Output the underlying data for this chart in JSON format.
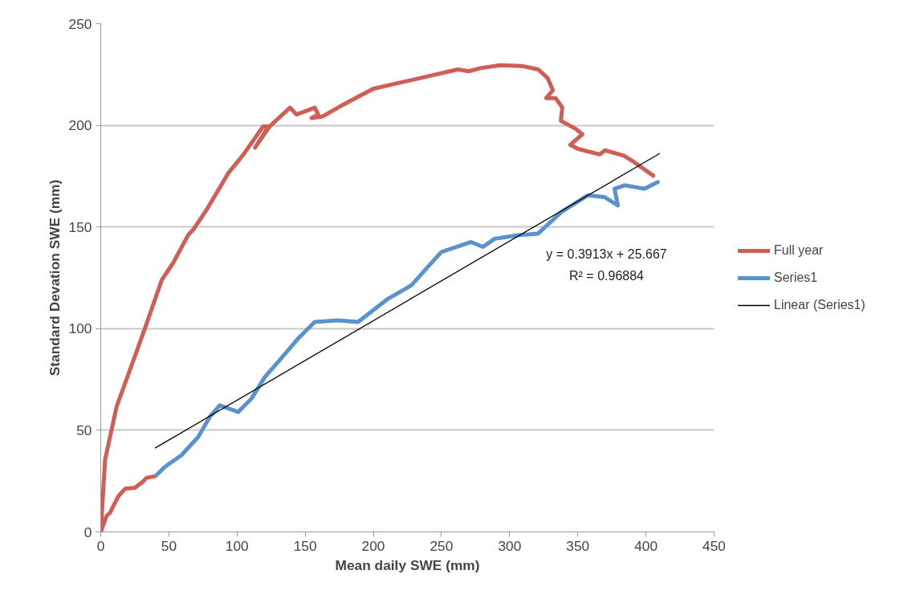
{
  "chart_data": {
    "type": "line",
    "xlabel": "Mean daily SWE (mm)",
    "ylabel": "Standard Devation SWE (mm)",
    "xlim": [
      0,
      450
    ],
    "xticks": [
      0,
      50,
      100,
      150,
      200,
      250,
      300,
      350,
      400,
      450
    ],
    "ylim": [
      0,
      250
    ],
    "yticks": [
      0,
      50,
      100,
      150,
      200,
      250
    ],
    "grid": "y",
    "legend": "right",
    "marker": "none",
    "line_style": "solid",
    "annotations": [
      "y = 0.3913x + 25.667\nR² = 0.96884"
    ],
    "series": [
      {
        "name": "Full year",
        "color": "#cf5e55",
        "x": [
          39.7,
          33.6,
          31.2,
          25.1,
          17.8,
          13,
          9.2,
          6.8,
          4.3,
          0.7,
          0,
          3.2,
          11.7,
          21.5,
          32.5,
          44.8,
          53.1,
          64.2,
          67.9,
          77.7,
          93.6,
          104.6,
          119,
          122.9,
          113.2,
          124,
          138.8,
          143.7,
          157,
          159.6,
          154.7,
          162.9,
          175.5,
          200,
          262,
          270,
          279.7,
          293.5,
          309,
          321,
          327.8,
          331.7,
          326.9,
          333.7,
          338.6,
          337.6,
          348.4,
          353.4,
          344.5,
          350.4,
          366.1,
          370,
          383.8,
          391.6,
          405.4
        ],
        "values": [
          27.4,
          26.6,
          24.9,
          21.7,
          21.2,
          17.6,
          12.7,
          9.4,
          7.9,
          1.2,
          0,
          35.6,
          61.8,
          79.8,
          100.3,
          124,
          132.3,
          146.1,
          148.7,
          158.5,
          176.5,
          185.6,
          199.4,
          199.4,
          189,
          199.5,
          208.7,
          205.3,
          208.7,
          205.3,
          203.6,
          204.4,
          209.3,
          218,
          227.5,
          226.6,
          228.3,
          229.6,
          229.2,
          227.5,
          223.3,
          217.3,
          213.4,
          213.4,
          208.8,
          202.2,
          198.3,
          195.6,
          190.4,
          188.4,
          185.7,
          187.7,
          185.1,
          181.8,
          175.2
        ]
      },
      {
        "name": "Series1",
        "color": "#5a92cf",
        "x": [
          40.9,
          47,
          59.2,
          71.5,
          80,
          87.4,
          100.8,
          110.6,
          120.4,
          130.1,
          144.8,
          157,
          174,
          188.8,
          210.8,
          227.9,
          239.9,
          249.9,
          271.8,
          280.4,
          289,
          306,
          320.7,
          337.9,
          357.4,
          369.6,
          379.4,
          376.9,
          384.3,
          399,
          408.7
        ],
        "values": [
          27.9,
          32,
          37.7,
          46.7,
          56.6,
          62.3,
          59,
          65.6,
          76.2,
          83.6,
          95.1,
          103.3,
          104.1,
          103.3,
          114.7,
          121.3,
          130.3,
          137.7,
          142.6,
          140.2,
          144.2,
          145.9,
          146.7,
          157.3,
          165.6,
          164.7,
          160.6,
          168.8,
          170.5,
          168.8,
          172.1
        ]
      },
      {
        "name": "Linear (Series1)",
        "color": "#000000",
        "x": [
          40,
          410
        ],
        "values": [
          41.3,
          186.1
        ]
      }
    ]
  }
}
